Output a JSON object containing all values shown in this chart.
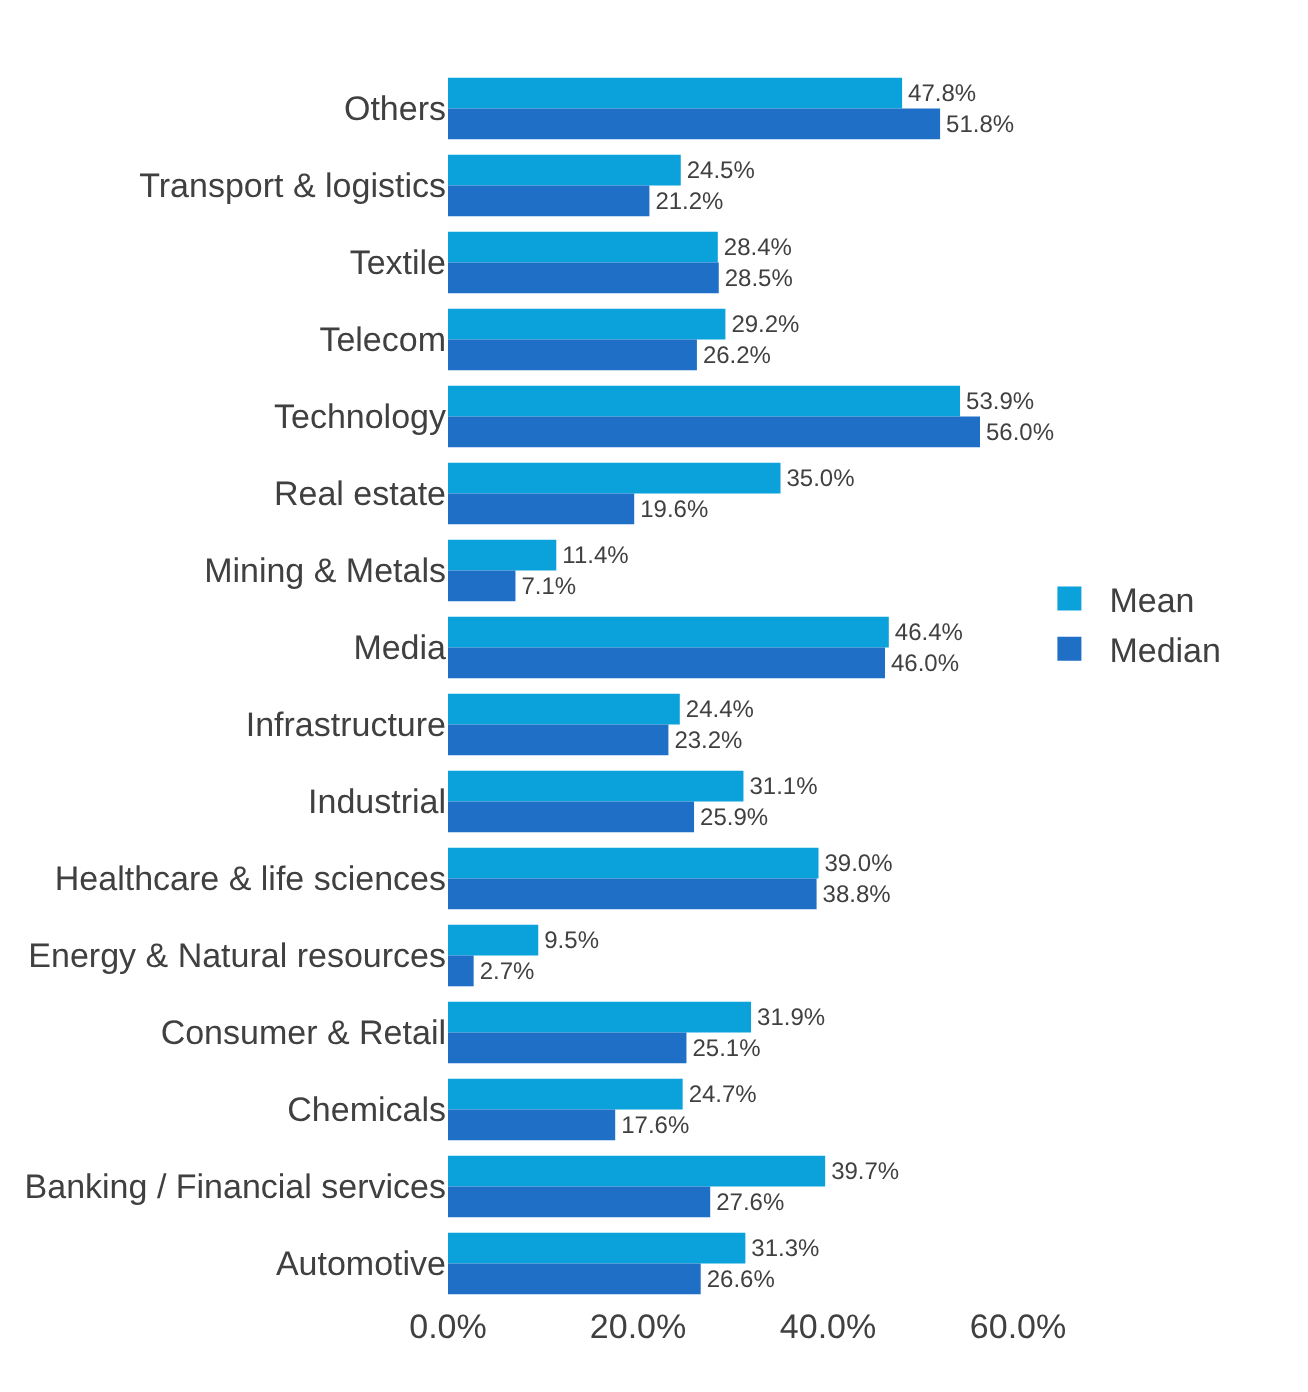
{
  "chart_data": {
    "type": "bar",
    "orientation": "horizontal",
    "categories": [
      "Others",
      "Transport & logistics",
      "Textile",
      "Telecom",
      "Technology",
      "Real estate",
      "Mining & Metals",
      "Media",
      "Infrastructure",
      "Industrial",
      "Healthcare & life sciences",
      "Energy & Natural resources",
      "Consumer & Retail",
      "Chemicals",
      "Banking / Financial services",
      "Automotive"
    ],
    "series": [
      {
        "name": "Mean",
        "color": "#0ba2dc",
        "values": [
          47.8,
          24.5,
          28.4,
          29.2,
          53.9,
          35.0,
          11.4,
          46.4,
          24.4,
          31.1,
          39.0,
          9.5,
          31.9,
          24.7,
          39.7,
          31.3
        ],
        "value_labels": [
          "47.8%",
          "24.5%",
          "28.4%",
          "29.2%",
          "53.9%",
          "35.0%",
          "11.4%",
          "46.4%",
          "24.4%",
          "31.1%",
          "39.0%",
          "9.5%",
          "31.9%",
          "24.7%",
          "39.7%",
          "31.3%"
        ]
      },
      {
        "name": "Median",
        "color": "#1f6fc6",
        "values": [
          51.8,
          21.2,
          28.5,
          26.2,
          56.0,
          19.6,
          7.1,
          46.0,
          23.2,
          25.9,
          38.8,
          2.7,
          25.1,
          17.6,
          27.6,
          26.6
        ],
        "value_labels": [
          "51.8%",
          "21.2%",
          "28.5%",
          "26.2%",
          "56.0%",
          "19.6%",
          "7.1%",
          "46.0%",
          "23.2%",
          "25.9%",
          "38.8%",
          "2.7%",
          "25.1%",
          "17.6%",
          "27.6%",
          "26.6%"
        ]
      }
    ],
    "xlim": [
      0,
      60
    ],
    "xticks": [
      {
        "value": 0,
        "label": "0.0%"
      },
      {
        "value": 20,
        "label": "20.0%"
      },
      {
        "value": 40,
        "label": "40.0%"
      },
      {
        "value": 60,
        "label": "60.0%"
      }
    ],
    "legend": "right"
  }
}
